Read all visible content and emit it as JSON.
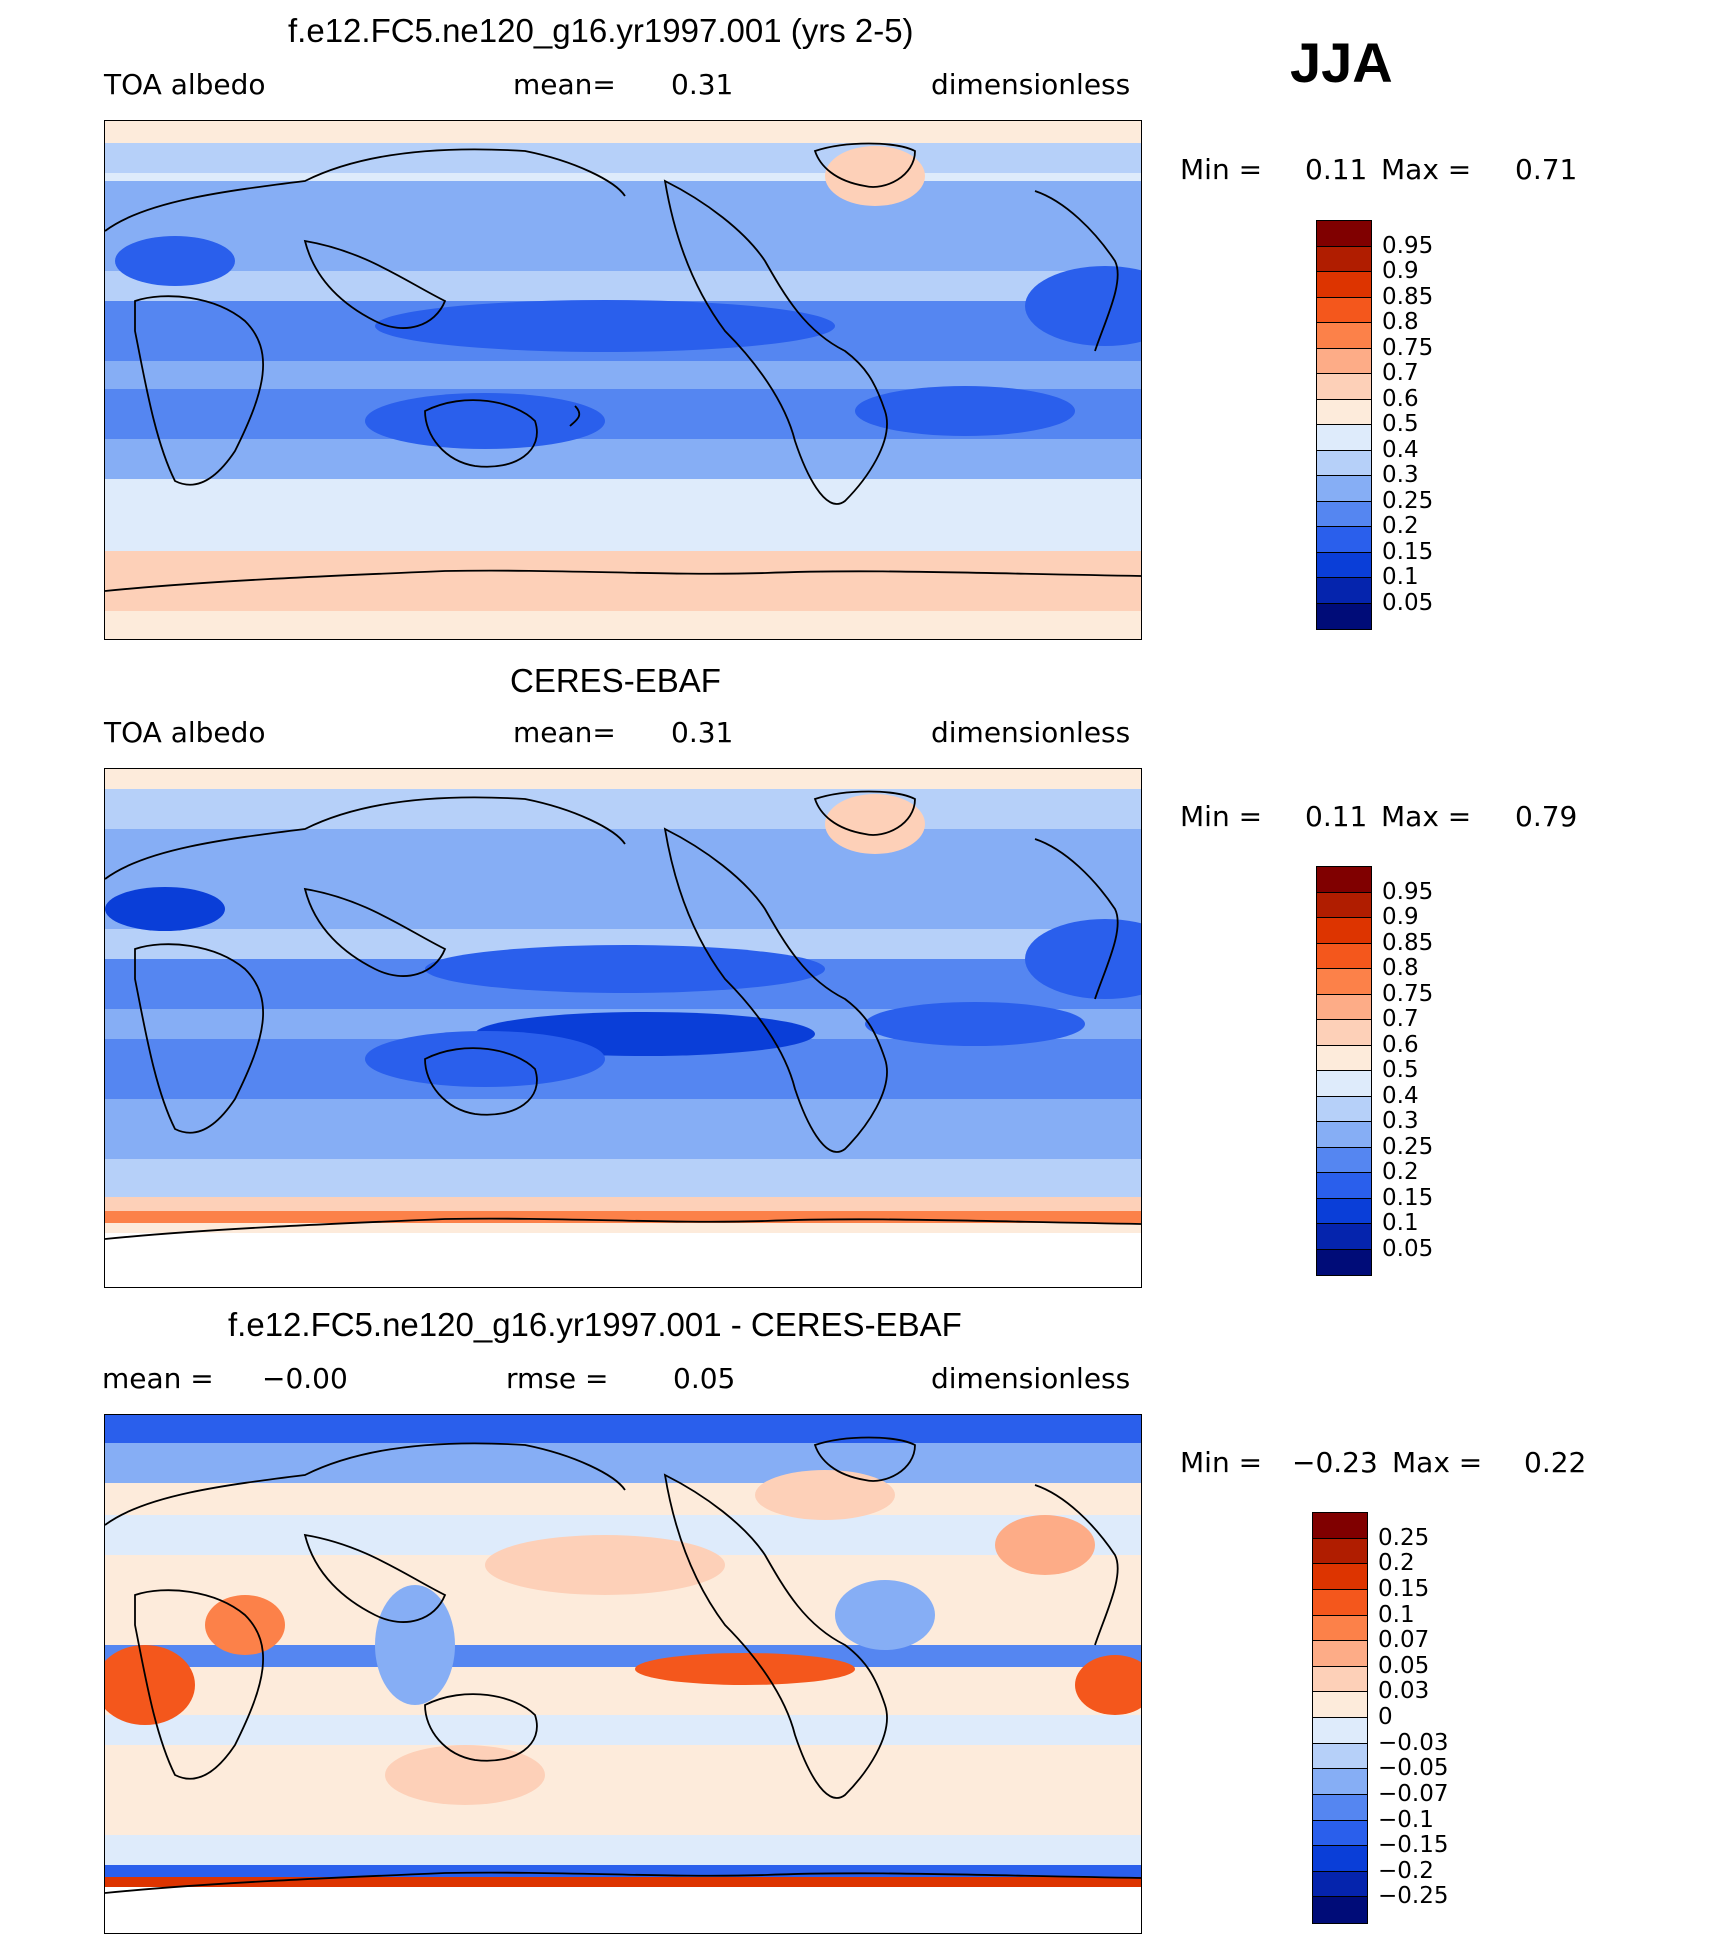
{
  "season": "JJA",
  "panels": [
    {
      "id": "model",
      "title": "f.e12.FC5.ne120_g16.yr1997.001 (yrs 2-5)",
      "left_label": "TOA albedo",
      "mid_label": "mean=",
      "mid_value": "0.31",
      "right_label": "dimensionless",
      "min_label": "Min =",
      "min_value": "0.11",
      "max_label": "Max =",
      "max_value": "0.71",
      "cbar_labels": [
        "0.95",
        "0.9",
        "0.85",
        "0.8",
        "0.75",
        "0.7",
        "0.6",
        "0.5",
        "0.4",
        "0.3",
        "0.25",
        "0.2",
        "0.15",
        "0.1",
        "0.05"
      ],
      "cbar_colors": [
        "#800000",
        "#b01d00",
        "#dd3400",
        "#f4571c",
        "#fc8149",
        "#fdac87",
        "#fdd0b8",
        "#fdebdb",
        "#deebfb",
        "#b6d0f9",
        "#86aef5",
        "#5586f1",
        "#2a5fec",
        "#0a3ed8",
        "#0524ad",
        "#000c78"
      ]
    },
    {
      "id": "obs",
      "title": "CERES-EBAF",
      "left_label": "TOA albedo",
      "mid_label": "mean=",
      "mid_value": "0.31",
      "right_label": "dimensionless",
      "min_label": "Min =",
      "min_value": "0.11",
      "max_label": "Max =",
      "max_value": "0.79",
      "cbar_labels": [
        "0.95",
        "0.9",
        "0.85",
        "0.8",
        "0.75",
        "0.7",
        "0.6",
        "0.5",
        "0.4",
        "0.3",
        "0.25",
        "0.2",
        "0.15",
        "0.1",
        "0.05"
      ],
      "cbar_colors": [
        "#800000",
        "#b01d00",
        "#dd3400",
        "#f4571c",
        "#fc8149",
        "#fdac87",
        "#fdd0b8",
        "#fdebdb",
        "#deebfb",
        "#b6d0f9",
        "#86aef5",
        "#5586f1",
        "#2a5fec",
        "#0a3ed8",
        "#0524ad",
        "#000c78"
      ]
    },
    {
      "id": "diff",
      "title": "f.e12.FC5.ne120_g16.yr1997.001 - CERES-EBAF",
      "left_label": "mean =",
      "left_value": "−0.00",
      "mid_label": "rmse =",
      "mid_value": "0.05",
      "right_label": "dimensionless",
      "min_label": "Min =",
      "min_value": "−0.23",
      "max_label": "Max =",
      "max_value": "0.22",
      "cbar_labels": [
        "0.25",
        "0.2",
        "0.15",
        "0.1",
        "0.07",
        "0.05",
        "0.03",
        "0",
        "−0.03",
        "−0.05",
        "−0.07",
        "−0.1",
        "−0.15",
        "−0.2",
        "−0.25"
      ],
      "cbar_colors": [
        "#800000",
        "#b01d00",
        "#dd3400",
        "#f4571c",
        "#fc8149",
        "#fdac87",
        "#fdd0b8",
        "#fdebdb",
        "#deebfb",
        "#b6d0f9",
        "#86aef5",
        "#5586f1",
        "#2a5fec",
        "#0a3ed8",
        "#0524ad",
        "#000c78"
      ]
    }
  ]
}
